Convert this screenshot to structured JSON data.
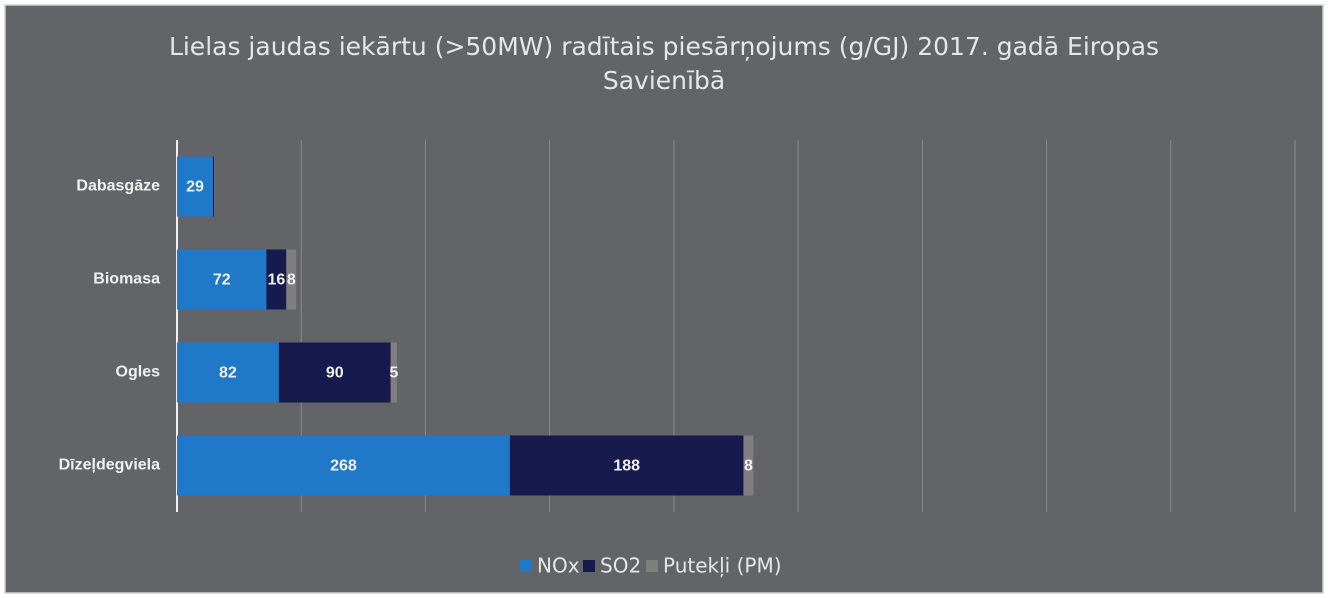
{
  "chart_data": {
    "type": "hbar_stacked",
    "title": "Lielas jaudas iekārtu (>50MW) radītais piesārņojums (g/GJ) 2017. gadā Eiropas Savienībā",
    "categories": [
      "Dabasgāze",
      "Biomasa",
      "Ogles",
      "Dīzeļdegviela"
    ],
    "series": [
      {
        "name": "NOx",
        "color": "#1f78c8",
        "values": [
          29,
          72,
          82,
          268
        ],
        "value_labels": [
          "29",
          "72",
          "82",
          "268"
        ]
      },
      {
        "name": "SO2",
        "color": "#161a4c",
        "values": [
          1,
          16,
          90,
          188
        ],
        "value_labels": [
          null,
          "16",
          "90",
          "188"
        ]
      },
      {
        "name": "Putekļi (PM)",
        "color": "#7f7f7f",
        "values": [
          0.5,
          8,
          5,
          8
        ],
        "value_labels": [
          null,
          "8",
          "5",
          "8"
        ]
      }
    ],
    "xlim": [
      0,
      900
    ],
    "xticks": [
      0,
      100,
      200,
      300,
      400,
      500,
      600,
      700,
      800,
      900
    ],
    "grid": true,
    "legend": "bottom"
  }
}
